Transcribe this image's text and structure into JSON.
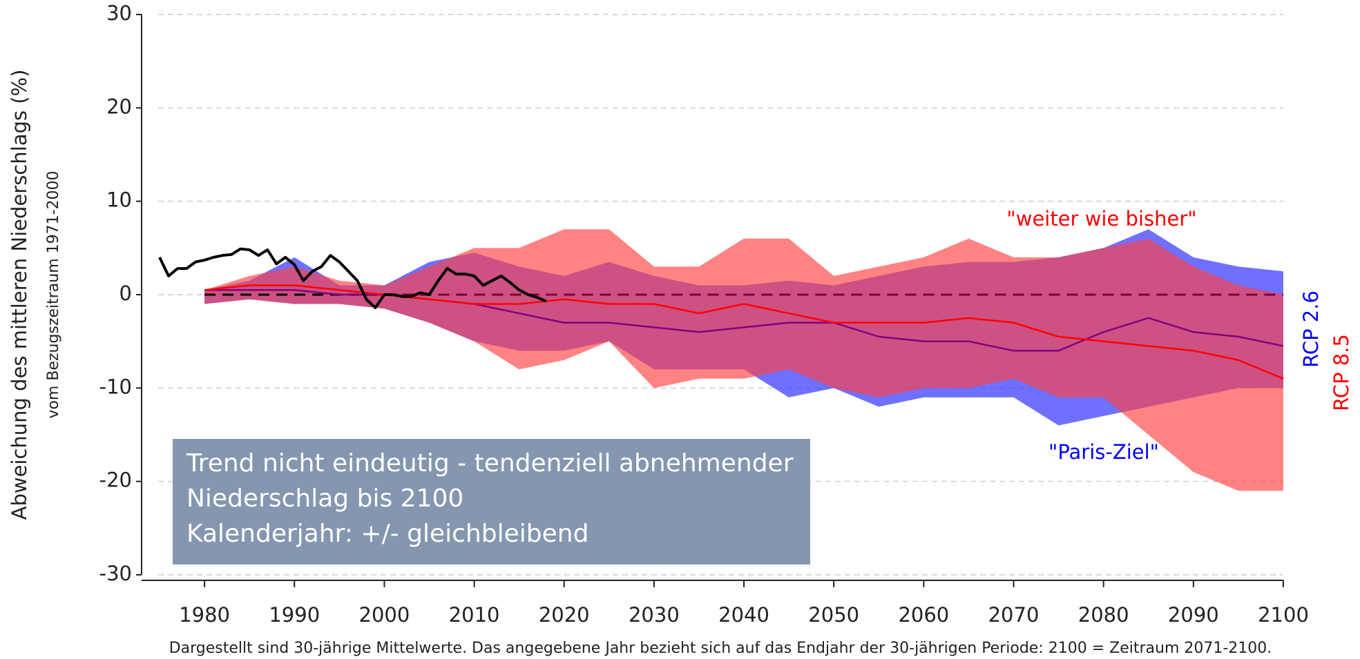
{
  "chart_data": {
    "type": "line",
    "ylabel": "Abweichung des mittleren Niederschlags (%)",
    "ylabel_sub": "vom Bezugszeitraum 1971-2000",
    "footnote": "Dargestellt sind 30-jährige Mittelwerte. Das angegebene Jahr bezieht sich auf das Endjahr der 30-jährigen Periode: 2100 = Zeitraum 2071-2100.",
    "annotation": [
      "Trend nicht eindeutig - tendenziell abnehmender",
      "Niederschlag bis 2100",
      "Kalenderjahr: +/- gleichbleibend"
    ],
    "label_rcp85": "\"weiter wie bisher\"",
    "label_rcp26": "\"Paris-Ziel\"",
    "xlim": [
      1973,
      2100
    ],
    "xticks": [
      1980,
      1990,
      2000,
      2010,
      2020,
      2030,
      2040,
      2050,
      2060,
      2070,
      2080,
      2090,
      2100
    ],
    "ylim": [
      -30,
      30
    ],
    "yticks": [
      -30,
      -20,
      -10,
      0,
      10,
      20,
      30
    ],
    "grid": true,
    "x": [
      1980,
      1985,
      1990,
      1995,
      2000,
      2005,
      2010,
      2015,
      2020,
      2025,
      2030,
      2035,
      2040,
      2045,
      2050,
      2055,
      2060,
      2065,
      2070,
      2075,
      2080,
      2085,
      2090,
      2095,
      2100
    ],
    "series": [
      {
        "name": "RCP 2.6",
        "color": "#0000ff",
        "band_color": "#4040ff",
        "line_color": "#800080",
        "values": [
          0.5,
          0.5,
          0.5,
          0,
          0,
          -0.5,
          -1,
          -2,
          -3,
          -3,
          -3.5,
          -4,
          -3.5,
          -3,
          -3,
          -4.5,
          -5,
          -5,
          -6,
          -6,
          -4,
          -2.5,
          -4,
          -4.5,
          -5.5
        ],
        "upper": [
          0.5,
          1.5,
          4,
          1,
          1,
          3.5,
          4.5,
          3,
          2,
          3.5,
          2,
          1,
          1,
          1.5,
          1,
          2,
          3,
          3.5,
          3.5,
          4,
          5,
          7,
          4,
          3,
          2.5
        ],
        "lower": [
          -1,
          -0.5,
          -1,
          -1,
          -1.5,
          -3,
          -5,
          -6,
          -6,
          -5,
          -8,
          -8,
          -8,
          -11,
          -10,
          -12,
          -11,
          -11,
          -11,
          -14,
          -13,
          -12,
          -11,
          -10,
          -10
        ]
      },
      {
        "name": "RCP 8.5",
        "color": "#ff0000",
        "band_color": "#ff4040",
        "line_color": "#ff0000",
        "values": [
          0.5,
          1,
          1,
          0.5,
          0,
          -0.5,
          -1,
          -1,
          -0.5,
          -1,
          -1,
          -2,
          -1,
          -2,
          -3,
          -3,
          -3,
          -2.5,
          -3,
          -4.5,
          -5,
          -5.5,
          -6,
          -7,
          -9
        ],
        "upper": [
          0.5,
          2,
          3,
          1.5,
          1,
          3,
          5,
          5,
          7,
          7,
          3,
          3,
          6,
          6,
          2,
          3,
          4,
          6,
          4,
          4,
          5,
          6,
          3,
          1,
          0
        ],
        "lower": [
          -1,
          -0.5,
          -1,
          -1,
          -1.5,
          -3,
          -5,
          -8,
          -7,
          -5,
          -10,
          -9,
          -9,
          -8,
          -10,
          -11,
          -10,
          -10,
          -9,
          -11,
          -11,
          -15,
          -19,
          -21,
          -21
        ]
      }
    ],
    "observed": {
      "color": "#000000",
      "x": [
        1975,
        1976,
        1977,
        1978,
        1979,
        1980,
        1981,
        1982,
        1983,
        1984,
        1985,
        1986,
        1987,
        1988,
        1989,
        1990,
        1991,
        1992,
        1993,
        1994,
        1995,
        1996,
        1997,
        1998,
        1999,
        2000,
        2001,
        2002,
        2003,
        2004,
        2005,
        2006,
        2007,
        2008,
        2009,
        2010,
        2011,
        2012,
        2013,
        2014,
        2015,
        2016,
        2017,
        2018
      ],
      "values": [
        4,
        2,
        2.8,
        2.8,
        3.5,
        3.7,
        4,
        4.2,
        4.3,
        4.9,
        4.8,
        4.2,
        4.8,
        3.3,
        4,
        3.2,
        1.5,
        2.5,
        3,
        4.2,
        3.5,
        2.5,
        1.5,
        -0.5,
        -1.4,
        0,
        0,
        -0.2,
        -0.2,
        0.2,
        0,
        1.5,
        2.8,
        2.2,
        2.2,
        2,
        1,
        1.5,
        2,
        1.3,
        0.5,
        0,
        -0.3,
        -0.7
      ]
    }
  }
}
